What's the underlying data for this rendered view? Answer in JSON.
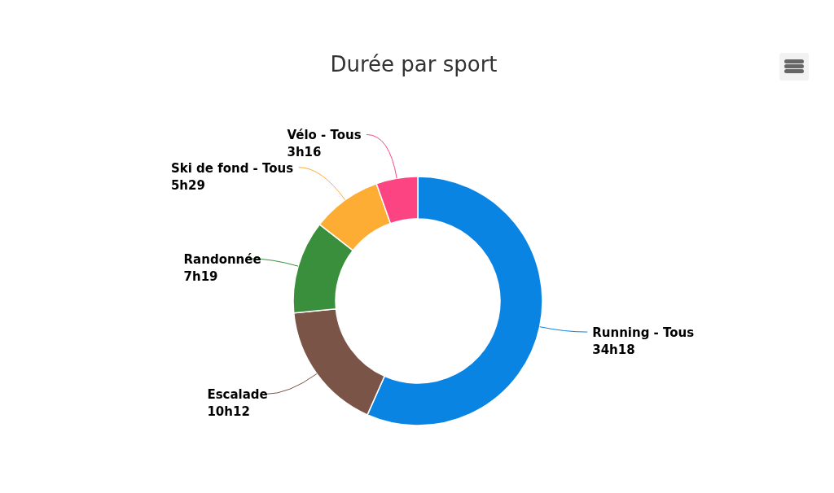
{
  "chart_data": {
    "type": "donut",
    "title": "Durée par sport",
    "categories": [
      "Running - Tous",
      "Escalade",
      "Randonnée",
      "Ski de fond - Tous",
      "Vélo - Tous"
    ],
    "values": [
      34.3,
      10.2,
      7.3167,
      5.4833,
      3.2667
    ],
    "value_labels": [
      "34h18",
      "10h12",
      "7h19",
      "5h29",
      "3h16"
    ],
    "colors": [
      "#0a84e3",
      "#7a5446",
      "#3a8f3c",
      "#fdad33",
      "#fc4482"
    ],
    "legend": false
  }
}
